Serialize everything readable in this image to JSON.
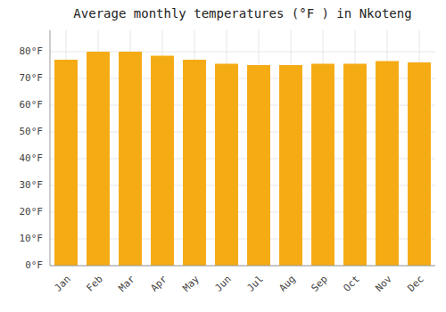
{
  "chart_data": {
    "type": "bar",
    "title": "Average monthly temperatures (°F ) in Nkoteng",
    "categories": [
      "Jan",
      "Feb",
      "Mar",
      "Apr",
      "May",
      "Jun",
      "Jul",
      "Aug",
      "Sep",
      "Oct",
      "Nov",
      "Dec"
    ],
    "values": [
      77,
      80,
      80,
      78.5,
      77,
      75.5,
      75,
      75,
      75.5,
      75.5,
      76.5,
      76
    ],
    "color": "#F5AB14",
    "ylim": [
      0,
      88
    ],
    "yticks": [
      {
        "value": 0,
        "label": "0°F"
      },
      {
        "value": 10,
        "label": "10°F"
      },
      {
        "value": 20,
        "label": "20°F"
      },
      {
        "value": 30,
        "label": "30°F"
      },
      {
        "value": 40,
        "label": "40°F"
      },
      {
        "value": 50,
        "label": "50°F"
      },
      {
        "value": 60,
        "label": "60°F"
      },
      {
        "value": 70,
        "label": "70°F"
      },
      {
        "value": 80,
        "label": "80°F"
      }
    ],
    "grid": true
  }
}
